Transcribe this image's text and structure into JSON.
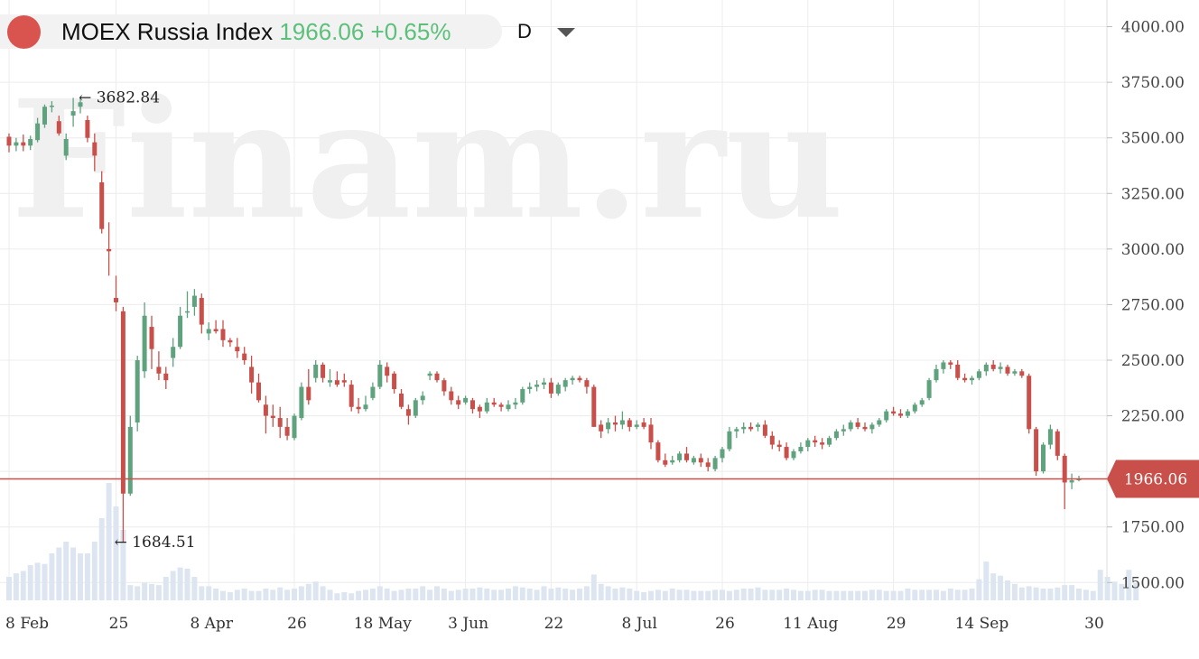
{
  "header": {
    "instrument": "MOEX Russia Index",
    "price": "1966.06",
    "change": "+0.65%",
    "timeframe": "D"
  },
  "watermark": "Finam.ru",
  "colors": {
    "up": "#5fa27e",
    "down": "#c9504a",
    "current_line": "#c9504a",
    "volume": "#dde6f0",
    "grid": "#ececec"
  },
  "chart_data": {
    "type": "candlestick",
    "title": "MOEX Russia Index",
    "ylim": [
      1420,
      4120
    ],
    "yticks": [
      1500,
      1750,
      2000,
      2250,
      2500,
      2750,
      3000,
      3250,
      3500,
      3750,
      4000
    ],
    "ytick_labels": [
      "1500.00",
      "1750.00",
      "",
      "2250.00",
      "2500.00",
      "2750.00",
      "3000.00",
      "3250.00",
      "3500.00",
      "3750.00",
      "4000.00"
    ],
    "xtick_labels": [
      "8 Feb",
      "25",
      "8 Apr",
      "26",
      "18 May",
      "3 Jun",
      "22",
      "8 Jul",
      "26",
      "11 Aug",
      "29",
      "14 Sep",
      "30"
    ],
    "xtick_bar_index": [
      0,
      15,
      28,
      40,
      52,
      64,
      76,
      88,
      100,
      112,
      124,
      136,
      148
    ],
    "current_price": 1966.06,
    "current_label": "1966.06",
    "annotations": [
      {
        "text": "3682.84",
        "bar": 9,
        "value": 3682.84
      },
      {
        "text": "1684.51",
        "bar": 14,
        "value": 1684.51
      }
    ],
    "volume": [
      0.2,
      0.23,
      0.25,
      0.3,
      0.32,
      0.31,
      0.4,
      0.45,
      0.5,
      0.45,
      0.4,
      0.4,
      0.5,
      0.7,
      1.0,
      0.8,
      0.6,
      0.13,
      0.12,
      0.15,
      0.14,
      0.13,
      0.2,
      0.25,
      0.28,
      0.27,
      0.2,
      0.12,
      0.12,
      0.1,
      0.08,
      0.07,
      0.09,
      0.1,
      0.08,
      0.08,
      0.1,
      0.09,
      0.11,
      0.09,
      0.1,
      0.12,
      0.14,
      0.16,
      0.12,
      0.09,
      0.06,
      0.07,
      0.06,
      0.08,
      0.09,
      0.1,
      0.12,
      0.1,
      0.08,
      0.09,
      0.1,
      0.1,
      0.12,
      0.09,
      0.12,
      0.1,
      0.08,
      0.09,
      0.1,
      0.1,
      0.11,
      0.1,
      0.09,
      0.09,
      0.1,
      0.12,
      0.11,
      0.1,
      0.09,
      0.12,
      0.1,
      0.11,
      0.1,
      0.09,
      0.1,
      0.12,
      0.22,
      0.14,
      0.12,
      0.1,
      0.11,
      0.1,
      0.08,
      0.07,
      0.08,
      0.09,
      0.08,
      0.1,
      0.09,
      0.09,
      0.08,
      0.08,
      0.08,
      0.09,
      0.09,
      0.08,
      0.09,
      0.1,
      0.1,
      0.11,
      0.09,
      0.09,
      0.09,
      0.1,
      0.09,
      0.08,
      0.08,
      0.09,
      0.09,
      0.08,
      0.08,
      0.08,
      0.08,
      0.08,
      0.08,
      0.09,
      0.09,
      0.08,
      0.08,
      0.08,
      0.1,
      0.09,
      0.09,
      0.09,
      0.09,
      0.08,
      0.1,
      0.09,
      0.09,
      0.1,
      0.18,
      0.33,
      0.23,
      0.21,
      0.17,
      0.14,
      0.11,
      0.12,
      0.11,
      0.1,
      0.1,
      0.11,
      0.13,
      0.13,
      0.1,
      0.09,
      0.08,
      0.26,
      0.2,
      0.16,
      0.14,
      0.26,
      0.15
    ],
    "ohlc": [
      [
        3505,
        3520,
        3435,
        3465
      ],
      [
        3465,
        3500,
        3440,
        3480
      ],
      [
        3480,
        3515,
        3440,
        3465
      ],
      [
        3465,
        3510,
        3445,
        3495
      ],
      [
        3490,
        3590,
        3480,
        3565
      ],
      [
        3560,
        3650,
        3545,
        3640
      ],
      [
        3640,
        3665,
        3615,
        3645
      ],
      [
        3575,
        3600,
        3510,
        3520
      ],
      [
        3420,
        3520,
        3400,
        3495
      ],
      [
        3600,
        3680,
        3550,
        3620
      ],
      [
        3640,
        3683,
        3610,
        3660
      ],
      [
        3580,
        3600,
        3480,
        3500
      ],
      [
        3480,
        3520,
        3350,
        3420
      ],
      [
        3300,
        3350,
        3070,
        3090
      ],
      [
        3000,
        3120,
        2880,
        2990
      ],
      [
        2780,
        2880,
        2720,
        2760
      ],
      [
        2720,
        2740,
        1684,
        1900
      ],
      [
        1900,
        2250,
        1890,
        2200
      ],
      [
        2220,
        2520,
        2180,
        2500
      ],
      [
        2450,
        2760,
        2420,
        2700
      ],
      [
        2650,
        2700,
        2460,
        2550
      ],
      [
        2470,
        2540,
        2410,
        2440
      ],
      [
        2440,
        2470,
        2370,
        2410
      ],
      [
        2510,
        2600,
        2470,
        2560
      ],
      [
        2560,
        2740,
        2550,
        2700
      ],
      [
        2720,
        2810,
        2690,
        2720
      ],
      [
        2740,
        2820,
        2700,
        2790
      ],
      [
        2780,
        2800,
        2620,
        2660
      ],
      [
        2620,
        2670,
        2590,
        2640
      ],
      [
        2640,
        2680,
        2620,
        2630
      ],
      [
        2640,
        2680,
        2560,
        2590
      ],
      [
        2590,
        2600,
        2560,
        2580
      ],
      [
        2560,
        2600,
        2510,
        2540
      ],
      [
        2530,
        2560,
        2480,
        2500
      ],
      [
        2470,
        2520,
        2350,
        2400
      ],
      [
        2400,
        2440,
        2310,
        2320
      ],
      [
        2300,
        2340,
        2170,
        2250
      ],
      [
        2250,
        2300,
        2200,
        2240
      ],
      [
        2240,
        2290,
        2150,
        2200
      ],
      [
        2200,
        2240,
        2140,
        2160
      ],
      [
        2150,
        2260,
        2140,
        2250
      ],
      [
        2240,
        2400,
        2230,
        2380
      ],
      [
        2380,
        2460,
        2300,
        2320
      ],
      [
        2420,
        2500,
        2400,
        2480
      ],
      [
        2480,
        2490,
        2400,
        2420
      ],
      [
        2400,
        2460,
        2380,
        2410
      ],
      [
        2410,
        2450,
        2380,
        2390
      ],
      [
        2410,
        2440,
        2380,
        2400
      ],
      [
        2390,
        2410,
        2270,
        2290
      ],
      [
        2290,
        2330,
        2260,
        2280
      ],
      [
        2280,
        2340,
        2270,
        2300
      ],
      [
        2330,
        2400,
        2320,
        2380
      ],
      [
        2380,
        2500,
        2370,
        2480
      ],
      [
        2470,
        2490,
        2400,
        2430
      ],
      [
        2440,
        2450,
        2350,
        2370
      ],
      [
        2350,
        2370,
        2280,
        2290
      ],
      [
        2280,
        2300,
        2210,
        2250
      ],
      [
        2250,
        2330,
        2240,
        2320
      ],
      [
        2320,
        2360,
        2300,
        2340
      ],
      [
        2430,
        2450,
        2410,
        2440
      ],
      [
        2440,
        2450,
        2400,
        2410
      ],
      [
        2410,
        2420,
        2340,
        2360
      ],
      [
        2360,
        2380,
        2300,
        2320
      ],
      [
        2320,
        2340,
        2280,
        2300
      ],
      [
        2310,
        2340,
        2300,
        2330
      ],
      [
        2320,
        2330,
        2260,
        2280
      ],
      [
        2290,
        2300,
        2240,
        2270
      ],
      [
        2270,
        2330,
        2260,
        2310
      ],
      [
        2310,
        2330,
        2290,
        2300
      ],
      [
        2300,
        2310,
        2270,
        2290
      ],
      [
        2280,
        2320,
        2270,
        2300
      ],
      [
        2300,
        2330,
        2280,
        2310
      ],
      [
        2310,
        2380,
        2300,
        2370
      ],
      [
        2370,
        2400,
        2350,
        2380
      ],
      [
        2380,
        2410,
        2360,
        2390
      ],
      [
        2390,
        2420,
        2370,
        2400
      ],
      [
        2400,
        2420,
        2330,
        2350
      ],
      [
        2350,
        2400,
        2340,
        2390
      ],
      [
        2380,
        2420,
        2360,
        2410
      ],
      [
        2410,
        2430,
        2390,
        2420
      ],
      [
        2420,
        2430,
        2400,
        2410
      ],
      [
        2410,
        2420,
        2350,
        2380
      ],
      [
        2380,
        2390,
        2200,
        2200
      ],
      [
        2210,
        2230,
        2150,
        2180
      ],
      [
        2190,
        2240,
        2170,
        2220
      ],
      [
        2220,
        2250,
        2180,
        2210
      ],
      [
        2210,
        2270,
        2190,
        2230
      ],
      [
        2230,
        2240,
        2180,
        2200
      ],
      [
        2200,
        2230,
        2190,
        2210
      ],
      [
        2220,
        2240,
        2190,
        2200
      ],
      [
        2210,
        2240,
        2100,
        2130
      ],
      [
        2130,
        2140,
        2040,
        2050
      ],
      [
        2050,
        2080,
        2020,
        2030
      ],
      [
        2040,
        2070,
        2030,
        2050
      ],
      [
        2050,
        2090,
        2040,
        2080
      ],
      [
        2080,
        2110,
        2040,
        2050
      ],
      [
        2040,
        2070,
        2030,
        2060
      ],
      [
        2060,
        2080,
        2020,
        2040
      ],
      [
        2040,
        2060,
        2000,
        2020
      ],
      [
        2010,
        2070,
        2000,
        2060
      ],
      [
        2060,
        2110,
        2040,
        2100
      ],
      [
        2100,
        2200,
        2090,
        2180
      ],
      [
        2180,
        2200,
        2150,
        2190
      ],
      [
        2190,
        2220,
        2170,
        2200
      ],
      [
        2200,
        2220,
        2180,
        2190
      ],
      [
        2200,
        2220,
        2180,
        2210
      ],
      [
        2210,
        2230,
        2150,
        2160
      ],
      [
        2160,
        2180,
        2100,
        2120
      ],
      [
        2120,
        2140,
        2090,
        2110
      ],
      [
        2110,
        2130,
        2050,
        2060
      ],
      [
        2060,
        2100,
        2050,
        2090
      ],
      [
        2090,
        2130,
        2080,
        2110
      ],
      [
        2110,
        2150,
        2090,
        2140
      ],
      [
        2140,
        2160,
        2110,
        2130
      ],
      [
        2130,
        2150,
        2100,
        2120
      ],
      [
        2120,
        2160,
        2110,
        2150
      ],
      [
        2150,
        2190,
        2140,
        2180
      ],
      [
        2180,
        2210,
        2160,
        2190
      ],
      [
        2190,
        2230,
        2180,
        2220
      ],
      [
        2220,
        2240,
        2190,
        2200
      ],
      [
        2200,
        2220,
        2180,
        2190
      ],
      [
        2190,
        2220,
        2170,
        2210
      ],
      [
        2210,
        2240,
        2200,
        2230
      ],
      [
        2230,
        2280,
        2220,
        2270
      ],
      [
        2270,
        2290,
        2250,
        2260
      ],
      [
        2260,
        2280,
        2240,
        2250
      ],
      [
        2250,
        2280,
        2240,
        2270
      ],
      [
        2270,
        2310,
        2260,
        2300
      ],
      [
        2300,
        2330,
        2290,
        2320
      ],
      [
        2330,
        2420,
        2320,
        2410
      ],
      [
        2410,
        2480,
        2400,
        2460
      ],
      [
        2460,
        2500,
        2440,
        2490
      ],
      [
        2490,
        2500,
        2460,
        2480
      ],
      [
        2480,
        2500,
        2410,
        2420
      ],
      [
        2420,
        2440,
        2400,
        2410
      ],
      [
        2410,
        2430,
        2390,
        2420
      ],
      [
        2420,
        2460,
        2410,
        2450
      ],
      [
        2450,
        2490,
        2430,
        2480
      ],
      [
        2480,
        2500,
        2450,
        2460
      ],
      [
        2460,
        2490,
        2440,
        2470
      ],
      [
        2470,
        2480,
        2430,
        2440
      ],
      [
        2440,
        2460,
        2430,
        2450
      ],
      [
        2450,
        2460,
        2420,
        2430
      ],
      [
        2430,
        2440,
        2170,
        2190
      ],
      [
        2190,
        2200,
        1980,
        2000
      ],
      [
        2000,
        2130,
        1990,
        2120
      ],
      [
        2120,
        2210,
        2100,
        2190
      ],
      [
        2180,
        2190,
        2050,
        2070
      ],
      [
        2070,
        2080,
        1830,
        1950
      ],
      [
        1950,
        1990,
        1920,
        1960
      ],
      [
        1962,
        1980,
        1955,
        1966
      ]
    ]
  }
}
